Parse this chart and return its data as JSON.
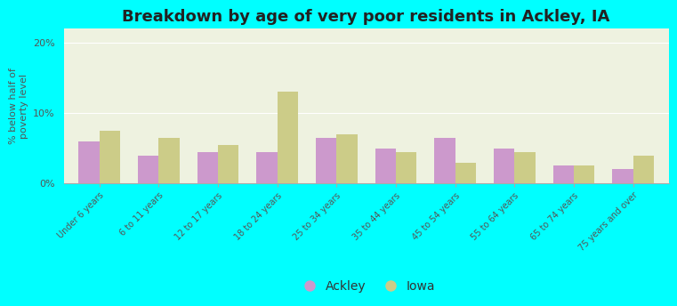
{
  "title": "Breakdown by age of very poor residents in Ackley, IA",
  "categories": [
    "Under 6 years",
    "6 to 11 years",
    "12 to 17 years",
    "18 to 24 years",
    "25 to 34 years",
    "35 to 44 years",
    "45 to 54 years",
    "55 to 64 years",
    "65 to 74 years",
    "75 years and over"
  ],
  "ackley_values": [
    6.0,
    4.0,
    4.5,
    4.5,
    6.5,
    5.0,
    6.5,
    5.0,
    2.5,
    2.0
  ],
  "iowa_values": [
    7.5,
    6.5,
    5.5,
    13.0,
    7.0,
    4.5,
    3.0,
    4.5,
    2.5,
    4.0
  ],
  "ackley_color": "#cc99cc",
  "iowa_color": "#cccc88",
  "ylabel": "% below half of\npoverty level",
  "ylim": [
    0,
    22
  ],
  "yticks": [
    0,
    10,
    20
  ],
  "ytick_labels": [
    "0%",
    "10%",
    "20%"
  ],
  "background_color": "#00ffff",
  "plot_bg_color": "#eef2e0",
  "bar_width": 0.35,
  "title_fontsize": 13,
  "axis_fontsize": 8,
  "legend_fontsize": 10
}
